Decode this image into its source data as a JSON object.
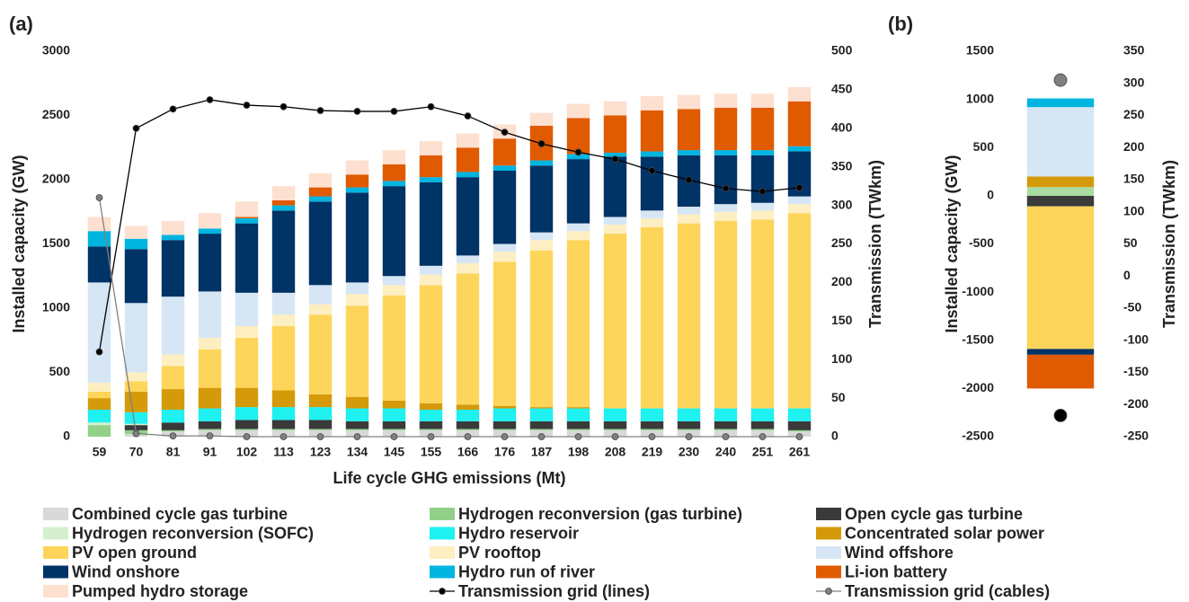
{
  "chart_data": [
    {
      "type": "bar",
      "stacked": true,
      "label": "(a)",
      "xlabel": "Life cycle GHG emissions (Mt)",
      "ylabel": "Installed capacity (GW)",
      "y2label": "Transmission (TWkm)",
      "categories": [
        "59",
        "70",
        "81",
        "91",
        "102",
        "113",
        "123",
        "134",
        "145",
        "155",
        "166",
        "176",
        "187",
        "198",
        "208",
        "219",
        "230",
        "240",
        "251",
        "261"
      ],
      "ylim": [
        0,
        3000
      ],
      "yticks": [
        0,
        500,
        1000,
        1500,
        2000,
        2500,
        3000
      ],
      "y2lim": [
        0,
        500
      ],
      "y2ticks": [
        0,
        50,
        100,
        150,
        200,
        250,
        300,
        350,
        400,
        450,
        500
      ],
      "legend": "bottom",
      "series": [
        {
          "name": "Combined cycle gas turbine",
          "color": "#d9d9d9",
          "values": [
            0,
            20,
            40,
            50,
            50,
            50,
            50,
            50,
            50,
            50,
            50,
            50,
            50,
            50,
            50,
            50,
            50,
            50,
            50,
            40
          ]
        },
        {
          "name": "Hydrogen reconversion (gas turbine)",
          "color": "#92d08a",
          "values": [
            90,
            30,
            10,
            10,
            10,
            10,
            10,
            10,
            10,
            10,
            10,
            10,
            10,
            10,
            10,
            10,
            10,
            10,
            10,
            10
          ]
        },
        {
          "name": "Open cycle gas turbine",
          "color": "#3a3a3a",
          "values": [
            0,
            40,
            60,
            60,
            70,
            70,
            70,
            60,
            60,
            60,
            60,
            60,
            60,
            60,
            60,
            60,
            60,
            60,
            60,
            70
          ]
        },
        {
          "name": "Hydrogen reconversion (SOFC)",
          "color": "#d6efd0",
          "values": [
            20,
            10,
            0,
            0,
            0,
            0,
            0,
            0,
            0,
            0,
            0,
            0,
            0,
            0,
            0,
            0,
            0,
            0,
            0,
            0
          ]
        },
        {
          "name": "Hydro reservoir",
          "color": "#1ff0f0",
          "values": [
            100,
            90,
            100,
            100,
            100,
            100,
            100,
            100,
            100,
            90,
            90,
            100,
            100,
            100,
            100,
            100,
            100,
            100,
            100,
            100
          ]
        },
        {
          "name": "Concentrated solar power",
          "color": "#d49a0a",
          "values": [
            90,
            160,
            160,
            160,
            150,
            130,
            100,
            90,
            60,
            50,
            40,
            20,
            10,
            10,
            0,
            0,
            0,
            0,
            0,
            0
          ]
        },
        {
          "name": "PV open ground",
          "color": "#fdd55a",
          "values": [
            50,
            80,
            180,
            300,
            390,
            500,
            620,
            710,
            820,
            920,
            1020,
            1120,
            1220,
            1300,
            1360,
            1410,
            1440,
            1460,
            1470,
            1520
          ]
        },
        {
          "name": "PV rooftop",
          "color": "#fdefc2",
          "values": [
            70,
            70,
            90,
            90,
            90,
            90,
            80,
            90,
            80,
            80,
            80,
            80,
            80,
            70,
            70,
            70,
            70,
            70,
            70,
            70
          ]
        },
        {
          "name": "Wind offshore",
          "color": "#d6e6f5",
          "values": [
            780,
            540,
            450,
            360,
            260,
            170,
            150,
            90,
            70,
            70,
            60,
            60,
            60,
            60,
            60,
            60,
            60,
            60,
            60,
            60
          ]
        },
        {
          "name": "Wind onshore",
          "color": "#003366",
          "values": [
            280,
            420,
            440,
            450,
            540,
            640,
            650,
            700,
            700,
            650,
            610,
            570,
            520,
            500,
            470,
            420,
            400,
            380,
            370,
            350
          ]
        },
        {
          "name": "Hydro run of river",
          "color": "#00b4e0",
          "values": [
            120,
            80,
            40,
            40,
            40,
            40,
            40,
            40,
            40,
            40,
            40,
            40,
            40,
            40,
            30,
            40,
            40,
            40,
            40,
            40
          ]
        },
        {
          "name": "Li-ion battery",
          "color": "#e05a00",
          "values": [
            0,
            0,
            0,
            0,
            10,
            40,
            70,
            100,
            130,
            170,
            190,
            210,
            270,
            280,
            290,
            320,
            320,
            330,
            330,
            350
          ]
        },
        {
          "name": "Pumped hydro storage",
          "color": "#fde0d0",
          "values": [
            110,
            100,
            110,
            120,
            120,
            110,
            110,
            110,
            110,
            110,
            110,
            110,
            100,
            110,
            110,
            110,
            110,
            110,
            110,
            110
          ]
        },
        {
          "name": "Transmission grid (lines)",
          "type": "line",
          "axis": "y2",
          "color": "#000000",
          "values": [
            110,
            400,
            425,
            437,
            430,
            428,
            423,
            422,
            422,
            428,
            416,
            395,
            380,
            369,
            360,
            345,
            333,
            322,
            318,
            323
          ]
        },
        {
          "name": "Transmission grid (cables)",
          "type": "line",
          "axis": "y2",
          "color": "#808080",
          "values": [
            310,
            4,
            1,
            1,
            0,
            0,
            0,
            0,
            0,
            0,
            0,
            0,
            0,
            0,
            0,
            0,
            0,
            0,
            0,
            0
          ]
        }
      ]
    },
    {
      "type": "bar",
      "stacked": true,
      "label": "(b)",
      "ylabel": "Installed capacity (GW)",
      "y2label": "Transmission (TWkm)",
      "categories": [
        null
      ],
      "ylim": [
        -2500,
        1500
      ],
      "yticks": [
        -2500,
        -2000,
        -1500,
        -1000,
        -500,
        0,
        500,
        1000,
        1500
      ],
      "y2lim": [
        -250,
        350
      ],
      "y2ticks": [
        -250,
        -200,
        -150,
        -100,
        -50,
        0,
        50,
        100,
        150,
        200,
        250,
        300,
        350
      ],
      "series": [
        {
          "color": "#3a3a3a",
          "values": [
            -110
          ]
        },
        {
          "color": "#a8dca0",
          "values": [
            90
          ]
        },
        {
          "color": "#d49a0a",
          "values": [
            110
          ]
        },
        {
          "color": "#fdd55a",
          "values": [
            -1480
          ]
        },
        {
          "color": "#d6e6f5",
          "values": [
            720
          ]
        },
        {
          "color": "#003366",
          "values": [
            -60
          ]
        },
        {
          "color": "#00b4e0",
          "values": [
            90
          ]
        },
        {
          "color": "#e05a00",
          "values": [
            -350
          ]
        },
        {
          "type": "line",
          "axis": "y2",
          "color": "#000000",
          "values": [
            -217
          ]
        },
        {
          "type": "line",
          "axis": "y2",
          "color": "#808080",
          "values": [
            305
          ]
        }
      ]
    }
  ]
}
